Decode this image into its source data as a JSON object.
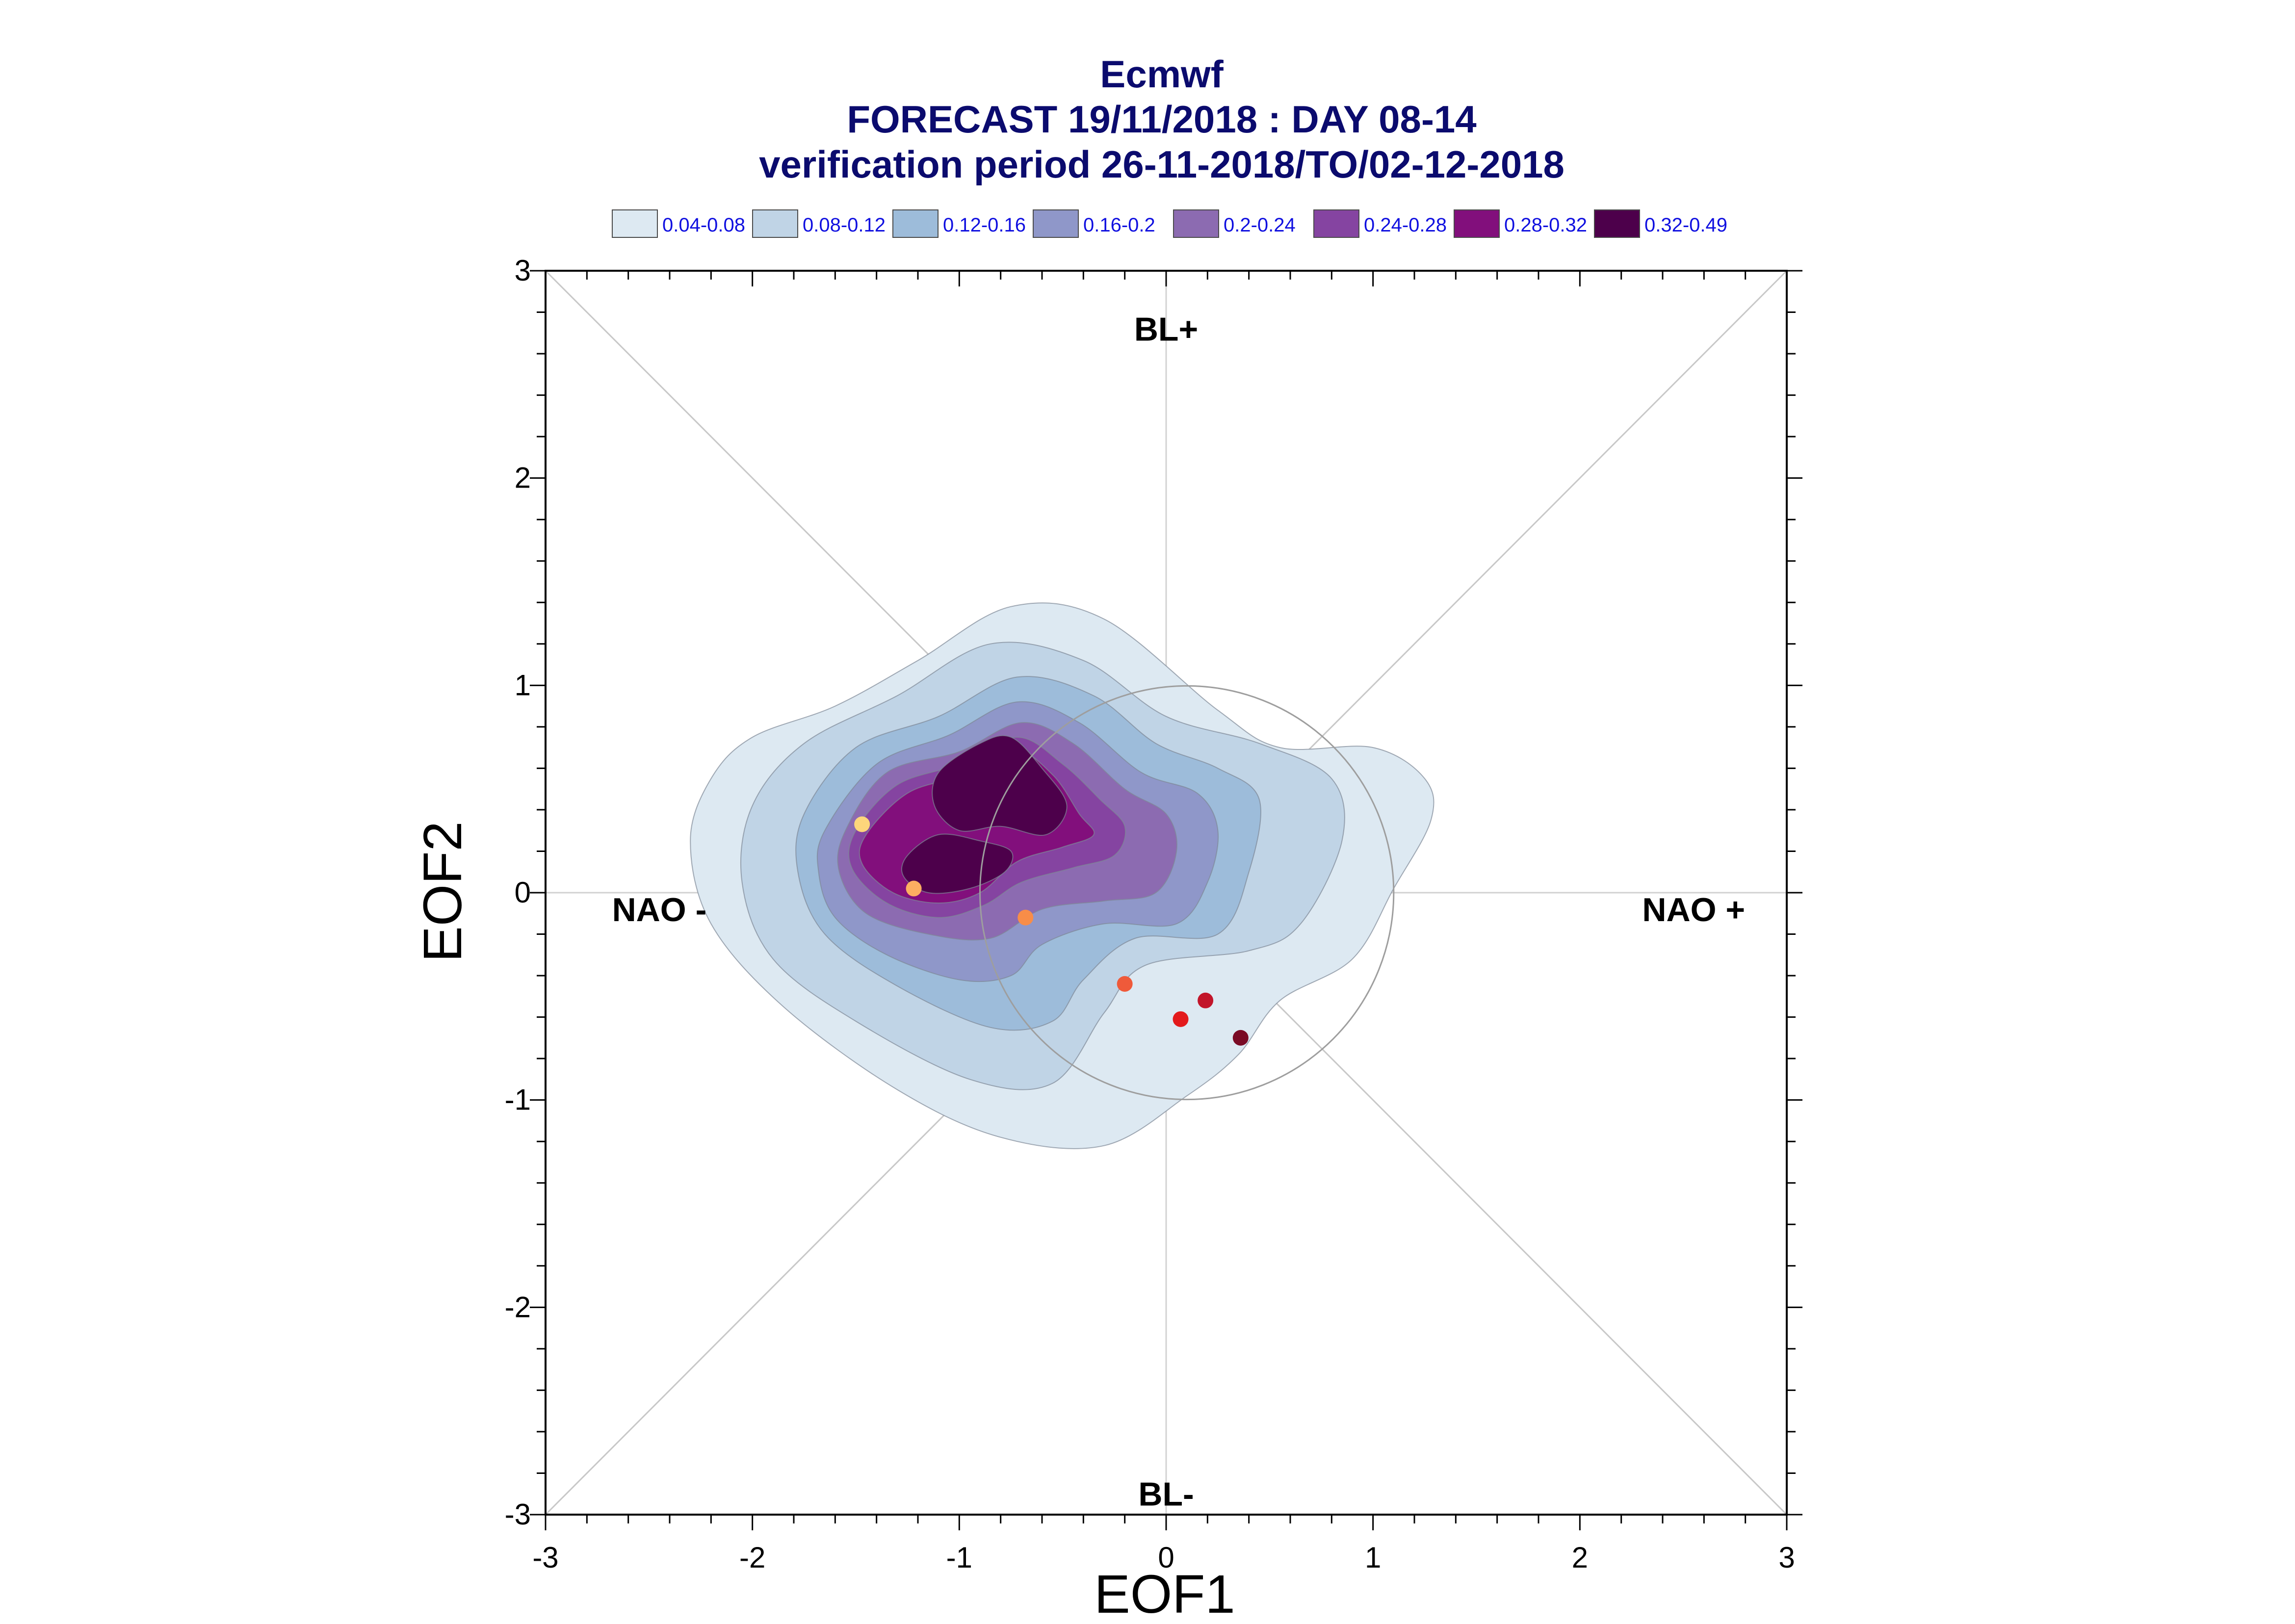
{
  "chart_data": {
    "type": "scatter",
    "title_lines": [
      "Ecmwf",
      "FORECAST 19/11/2018 : DAY 08-14",
      "verification period 26-11-2018/TO/02-12-2018"
    ],
    "xlabel": "EOF1",
    "ylabel": "EOF2",
    "xlim": [
      -3,
      3
    ],
    "ylim": [
      -3,
      3
    ],
    "x_ticks": [
      -3,
      -2,
      -1,
      0,
      1,
      2,
      3
    ],
    "y_ticks": [
      -3,
      -2,
      -1,
      0,
      1,
      2,
      3
    ],
    "x_tick_labels": [
      "-3",
      "-2",
      "-1",
      "0",
      "1",
      "2",
      "3"
    ],
    "y_tick_labels": [
      "-3",
      "-2",
      "-1",
      "0",
      "1",
      "2",
      "3"
    ],
    "regime_labels": [
      {
        "text": "BL+",
        "x": 0,
        "y": 2.72
      },
      {
        "text": "BL-",
        "x": 0,
        "y": -2.9
      },
      {
        "text": "NAO -",
        "x": -2.45,
        "y": -0.08
      },
      {
        "text": "NAO +",
        "x": 2.55,
        "y": -0.08
      }
    ],
    "reference_circle": {
      "cx": 0.1,
      "cy": 0.0,
      "r": 1.0
    },
    "legend": [
      {
        "label": "0.04-0.08",
        "color": "#dde9f2"
      },
      {
        "label": "0.08-0.12",
        "color": "#c0d4e6"
      },
      {
        "label": "0.12-0.16",
        "color": "#9dbcda"
      },
      {
        "label": "0.16-0.2",
        "color": "#8f97c9"
      },
      {
        "label": "0.2-0.24",
        "color": "#8c6bb1"
      },
      {
        "label": "0.24-0.28",
        "color": "#8544a1"
      },
      {
        "label": "0.28-0.32",
        "color": "#820f7c"
      },
      {
        "label": "0.32-0.49",
        "color": "#4d004b"
      }
    ],
    "density_contours": [
      {
        "level": "0.04-0.08",
        "color": "#dde9f2",
        "points": [
          [
            -2.2,
            0.55
          ],
          [
            -2.0,
            0.75
          ],
          [
            -1.6,
            0.9
          ],
          [
            -1.2,
            1.12
          ],
          [
            -0.75,
            1.38
          ],
          [
            -0.3,
            1.32
          ],
          [
            0.25,
            0.88
          ],
          [
            0.55,
            0.7
          ],
          [
            1.0,
            0.7
          ],
          [
            1.25,
            0.55
          ],
          [
            1.28,
            0.35
          ],
          [
            1.1,
            0.02
          ],
          [
            0.9,
            -0.32
          ],
          [
            0.55,
            -0.52
          ],
          [
            0.35,
            -0.78
          ],
          [
            0.1,
            -0.98
          ],
          [
            -0.3,
            -1.22
          ],
          [
            -0.8,
            -1.18
          ],
          [
            -1.3,
            -0.95
          ],
          [
            -1.85,
            -0.55
          ],
          [
            -2.2,
            -0.15
          ],
          [
            -2.3,
            0.25
          ]
        ]
      },
      {
        "level": "0.08-0.12",
        "color": "#c0d4e6",
        "points": [
          [
            -2.0,
            0.42
          ],
          [
            -1.75,
            0.72
          ],
          [
            -1.3,
            0.95
          ],
          [
            -0.85,
            1.2
          ],
          [
            -0.4,
            1.12
          ],
          [
            0.0,
            0.85
          ],
          [
            0.45,
            0.72
          ],
          [
            0.8,
            0.55
          ],
          [
            0.85,
            0.25
          ],
          [
            0.65,
            -0.15
          ],
          [
            0.4,
            -0.28
          ],
          [
            -0.1,
            -0.35
          ],
          [
            -0.3,
            -0.58
          ],
          [
            -0.55,
            -0.92
          ],
          [
            -0.95,
            -0.9
          ],
          [
            -1.5,
            -0.62
          ],
          [
            -1.9,
            -0.32
          ],
          [
            -2.05,
            0.05
          ]
        ]
      },
      {
        "level": "0.12-0.16",
        "color": "#9dbcda",
        "points": [
          [
            -1.75,
            0.38
          ],
          [
            -1.5,
            0.7
          ],
          [
            -1.1,
            0.85
          ],
          [
            -0.72,
            1.04
          ],
          [
            -0.35,
            0.95
          ],
          [
            -0.05,
            0.72
          ],
          [
            0.25,
            0.6
          ],
          [
            0.45,
            0.45
          ],
          [
            0.4,
            0.1
          ],
          [
            0.25,
            -0.2
          ],
          [
            -0.15,
            -0.22
          ],
          [
            -0.4,
            -0.42
          ],
          [
            -0.55,
            -0.62
          ],
          [
            -0.85,
            -0.65
          ],
          [
            -1.3,
            -0.45
          ],
          [
            -1.65,
            -0.2
          ],
          [
            -1.78,
            0.1
          ]
        ]
      },
      {
        "level": "0.16-0.2",
        "color": "#8f97c9",
        "points": [
          [
            -1.65,
            0.3
          ],
          [
            -1.4,
            0.62
          ],
          [
            -1.05,
            0.76
          ],
          [
            -0.72,
            0.92
          ],
          [
            -0.42,
            0.82
          ],
          [
            -0.12,
            0.58
          ],
          [
            0.15,
            0.48
          ],
          [
            0.25,
            0.3
          ],
          [
            0.2,
            0.05
          ],
          [
            0.05,
            -0.15
          ],
          [
            -0.3,
            -0.15
          ],
          [
            -0.6,
            -0.25
          ],
          [
            -0.75,
            -0.4
          ],
          [
            -1.0,
            -0.42
          ],
          [
            -1.35,
            -0.3
          ],
          [
            -1.6,
            -0.12
          ],
          [
            -1.68,
            0.1
          ]
        ]
      },
      {
        "level": "0.2-0.24",
        "color": "#8c6bb1",
        "points": [
          [
            -1.55,
            0.3
          ],
          [
            -1.35,
            0.58
          ],
          [
            -1.0,
            0.68
          ],
          [
            -0.7,
            0.82
          ],
          [
            -0.45,
            0.72
          ],
          [
            -0.2,
            0.5
          ],
          [
            0.0,
            0.38
          ],
          [
            0.05,
            0.2
          ],
          [
            -0.05,
            0.0
          ],
          [
            -0.3,
            -0.04
          ],
          [
            -0.6,
            -0.08
          ],
          [
            -0.85,
            -0.22
          ],
          [
            -1.15,
            -0.2
          ],
          [
            -1.45,
            -0.1
          ],
          [
            -1.58,
            0.1
          ]
        ]
      },
      {
        "level": "0.24-0.28",
        "color": "#8544a1",
        "points": [
          [
            -1.5,
            0.3
          ],
          [
            -1.3,
            0.52
          ],
          [
            -1.0,
            0.62
          ],
          [
            -0.72,
            0.75
          ],
          [
            -0.5,
            0.62
          ],
          [
            -0.32,
            0.45
          ],
          [
            -0.2,
            0.32
          ],
          [
            -0.25,
            0.18
          ],
          [
            -0.45,
            0.12
          ],
          [
            -0.7,
            0.05
          ],
          [
            -0.88,
            -0.06
          ],
          [
            -1.1,
            -0.12
          ],
          [
            -1.35,
            -0.05
          ],
          [
            -1.52,
            0.12
          ]
        ]
      },
      {
        "level": "0.28-0.32",
        "color": "#820f7c",
        "points": [
          [
            -1.45,
            0.28
          ],
          [
            -1.25,
            0.48
          ],
          [
            -0.98,
            0.57
          ],
          [
            -0.75,
            0.7
          ],
          [
            -0.55,
            0.57
          ],
          [
            -0.42,
            0.38
          ],
          [
            -0.35,
            0.28
          ],
          [
            -0.5,
            0.22
          ],
          [
            -0.72,
            0.15
          ],
          [
            -0.9,
            0.0
          ],
          [
            -1.1,
            -0.05
          ],
          [
            -1.32,
            0.0
          ],
          [
            -1.47,
            0.14
          ]
        ]
      },
      {
        "level": "0.32-0.49",
        "color": "#4d004b",
        "points": [
          [
            -1.1,
            0.58
          ],
          [
            -0.9,
            0.72
          ],
          [
            -0.75,
            0.75
          ],
          [
            -0.6,
            0.6
          ],
          [
            -0.48,
            0.42
          ],
          [
            -0.58,
            0.28
          ],
          [
            -0.8,
            0.32
          ],
          [
            -1.0,
            0.3
          ],
          [
            -1.12,
            0.42
          ]
        ]
      },
      {
        "level": "0.32-0.49",
        "color": "#4d004b",
        "points": [
          [
            -1.25,
            0.18
          ],
          [
            -1.1,
            0.28
          ],
          [
            -0.9,
            0.25
          ],
          [
            -0.75,
            0.2
          ],
          [
            -0.78,
            0.1
          ],
          [
            -0.95,
            0.02
          ],
          [
            -1.15,
            0.0
          ],
          [
            -1.27,
            0.08
          ]
        ]
      }
    ],
    "points": [
      {
        "x": -1.47,
        "y": 0.33,
        "color": "#fdd67b"
      },
      {
        "x": -1.22,
        "y": 0.02,
        "color": "#fdae61"
      },
      {
        "x": -0.68,
        "y": -0.12,
        "color": "#f88d48"
      },
      {
        "x": -0.2,
        "y": -0.44,
        "color": "#ef5a3a"
      },
      {
        "x": 0.07,
        "y": -0.61,
        "color": "#e31a1c"
      },
      {
        "x": 0.19,
        "y": -0.52,
        "color": "#c2152a"
      },
      {
        "x": 0.36,
        "y": -0.7,
        "color": "#7a0b25"
      }
    ]
  }
}
